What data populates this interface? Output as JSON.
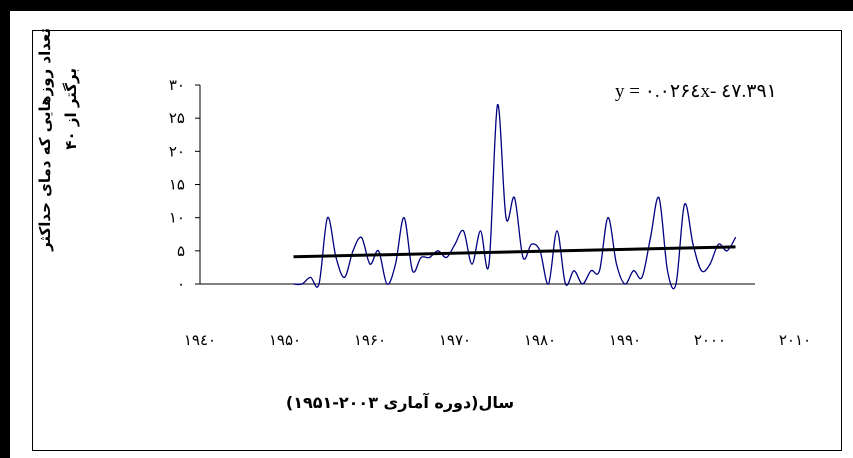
{
  "chart_data": {
    "type": "line",
    "xlabel": "سال(دوره آماری ۲۰۰۳-۱۹۵۱)",
    "ylabel_line1": "تعداد روزهایی که دمای حداکثر",
    "ylabel_line2": "برگتر از ۴۰",
    "equation": "y = ۰.۰۲۶٤x- ٤٧.٣٩١",
    "xlim": [
      1940,
      2010
    ],
    "ylim": [
      0,
      30
    ],
    "x_ticks": [
      1940,
      1950,
      1960,
      1970,
      1980,
      1990,
      2000,
      2010
    ],
    "x_tick_labels": [
      "۱۹٤۰",
      "۱۹۵۰",
      "۱۹۶۰",
      "۱۹۷۰",
      "۱۹۸۰",
      "۱۹۹۰",
      "۲۰۰۰",
      "۲۰۱۰"
    ],
    "y_ticks": [
      0,
      5,
      10,
      15,
      20,
      25,
      30
    ],
    "y_tick_labels": [
      "۰",
      "۵",
      "۱۰",
      "۱۵",
      "۲۰",
      "۲۵",
      "۳۰"
    ],
    "series": [
      {
        "color": "#000080",
        "x": [
          1951,
          1952,
          1953,
          1954,
          1955,
          1956,
          1957,
          1958,
          1959,
          1960,
          1961,
          1962,
          1963,
          1964,
          1965,
          1966,
          1967,
          1968,
          1969,
          1970,
          1971,
          1972,
          1973,
          1974,
          1975,
          1976,
          1977,
          1978,
          1979,
          1980,
          1981,
          1982,
          1983,
          1984,
          1985,
          1986,
          1987,
          1988,
          1989,
          1990,
          1991,
          1992,
          1993,
          1994,
          1995,
          1996,
          1997,
          1998,
          1999,
          2000,
          2001,
          2002,
          2003
        ],
        "values": [
          0,
          0,
          1,
          0,
          10,
          4,
          1,
          5,
          7,
          3,
          5,
          0,
          3,
          10,
          2,
          4,
          4,
          5,
          4,
          6,
          8,
          3,
          8,
          3,
          27,
          10,
          13,
          4,
          6,
          5,
          0,
          8,
          0,
          2,
          0,
          2,
          2,
          10,
          3,
          0,
          2,
          1,
          7,
          13,
          2,
          0,
          12,
          6,
          2,
          3,
          6,
          5,
          7
        ]
      }
    ],
    "trendline": {
      "color": "#000000",
      "x_start": 1951,
      "x_end": 2003,
      "y_start": 4.1,
      "y_end": 5.6
    }
  }
}
